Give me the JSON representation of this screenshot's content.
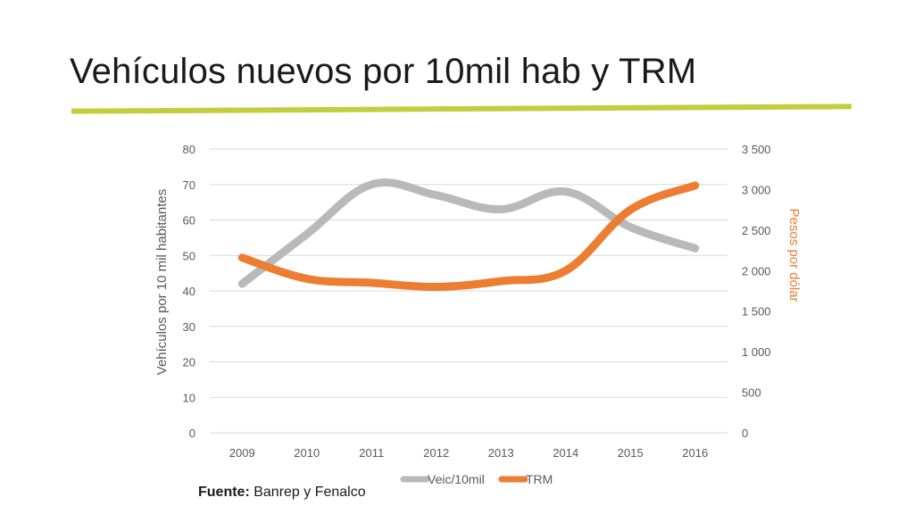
{
  "slide": {
    "title": "Vehículos nuevos por 10mil hab y TRM",
    "source_label": "Fuente:",
    "source_text": " Banrep y Fenalco"
  },
  "colors": {
    "accent_rule": "#c5cc3e",
    "series_veic": "#b9b9b9",
    "series_trm": "#ed7d31",
    "axis_text": "#595959",
    "gridline": "#d9d9d9"
  },
  "chart_data": {
    "type": "line",
    "title": "",
    "categories": [
      "2009",
      "2010",
      "2011",
      "2012",
      "2013",
      "2014",
      "2015",
      "2016"
    ],
    "series": [
      {
        "name": "Veic/10mil",
        "axis": "left",
        "values": [
          42,
          56,
          70,
          67,
          63,
          68,
          58,
          52
        ]
      },
      {
        "name": "TRM",
        "axis": "right",
        "values": [
          2160,
          1900,
          1850,
          1800,
          1870,
          2000,
          2750,
          3050
        ]
      }
    ],
    "ylabel": "Vehículos por 10 mil habitantes",
    "y2label": "Pesos por dólar",
    "ylim": [
      0,
      80
    ],
    "y2lim": [
      0,
      3500
    ],
    "yticks": [
      "0",
      "10",
      "20",
      "30",
      "40",
      "50",
      "60",
      "70",
      "80"
    ],
    "y2ticks": [
      "0",
      "500",
      "1 000",
      "1 500",
      "2 000",
      "2 500",
      "3 000",
      "3 500"
    ],
    "grid": true,
    "legend_position": "bottom"
  }
}
